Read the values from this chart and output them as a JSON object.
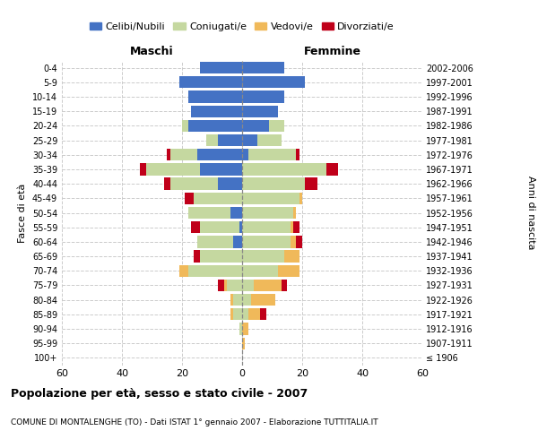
{
  "age_groups": [
    "100+",
    "95-99",
    "90-94",
    "85-89",
    "80-84",
    "75-79",
    "70-74",
    "65-69",
    "60-64",
    "55-59",
    "50-54",
    "45-49",
    "40-44",
    "35-39",
    "30-34",
    "25-29",
    "20-24",
    "15-19",
    "10-14",
    "5-9",
    "0-4"
  ],
  "birth_years": [
    "≤ 1906",
    "1907-1911",
    "1912-1916",
    "1917-1921",
    "1922-1926",
    "1927-1931",
    "1932-1936",
    "1937-1941",
    "1942-1946",
    "1947-1951",
    "1952-1956",
    "1957-1961",
    "1962-1966",
    "1967-1971",
    "1972-1976",
    "1977-1981",
    "1982-1986",
    "1987-1991",
    "1992-1996",
    "1997-2001",
    "2002-2006"
  ],
  "maschi": {
    "celibi": [
      0,
      0,
      0,
      0,
      0,
      0,
      0,
      0,
      3,
      1,
      4,
      0,
      8,
      14,
      15,
      8,
      18,
      17,
      18,
      21,
      14
    ],
    "coniugati": [
      0,
      0,
      1,
      3,
      3,
      5,
      18,
      14,
      12,
      13,
      14,
      16,
      16,
      18,
      9,
      4,
      2,
      0,
      0,
      0,
      0
    ],
    "vedovi": [
      0,
      0,
      0,
      1,
      1,
      1,
      3,
      0,
      0,
      0,
      0,
      0,
      0,
      0,
      0,
      0,
      0,
      0,
      0,
      0,
      0
    ],
    "divorziati": [
      0,
      0,
      0,
      0,
      0,
      2,
      0,
      2,
      0,
      3,
      0,
      3,
      2,
      2,
      1,
      0,
      0,
      0,
      0,
      0,
      0
    ]
  },
  "femmine": {
    "nubili": [
      0,
      0,
      0,
      0,
      0,
      0,
      0,
      0,
      0,
      0,
      0,
      0,
      0,
      0,
      2,
      5,
      9,
      12,
      14,
      21,
      14
    ],
    "coniugate": [
      0,
      0,
      0,
      2,
      3,
      4,
      12,
      14,
      16,
      16,
      17,
      19,
      21,
      28,
      16,
      8,
      5,
      0,
      0,
      0,
      0
    ],
    "vedove": [
      0,
      1,
      2,
      4,
      8,
      9,
      7,
      5,
      2,
      1,
      1,
      1,
      0,
      0,
      0,
      0,
      0,
      0,
      0,
      0,
      0
    ],
    "divorziate": [
      0,
      0,
      0,
      2,
      0,
      2,
      0,
      0,
      2,
      2,
      0,
      0,
      4,
      4,
      1,
      0,
      0,
      0,
      0,
      0,
      0
    ]
  },
  "colors": {
    "celibi": "#4472c4",
    "coniugati": "#c5d8a0",
    "vedovi": "#f0b95a",
    "divorziati": "#c0001a"
  },
  "xlim": 60,
  "title": "Popolazione per età, sesso e stato civile - 2007",
  "subtitle": "COMUNE DI MONTALENGHE (TO) - Dati ISTAT 1° gennaio 2007 - Elaborazione TUTTITALIA.IT",
  "legend_labels": [
    "Celibi/Nubili",
    "Coniugati/e",
    "Vedovi/e",
    "Divorziati/e"
  ],
  "ylabel_left": "Maschi",
  "ylabel_right": "Femmine",
  "yaxis_label": "Fasce di età",
  "right_label": "Anni di nascita"
}
